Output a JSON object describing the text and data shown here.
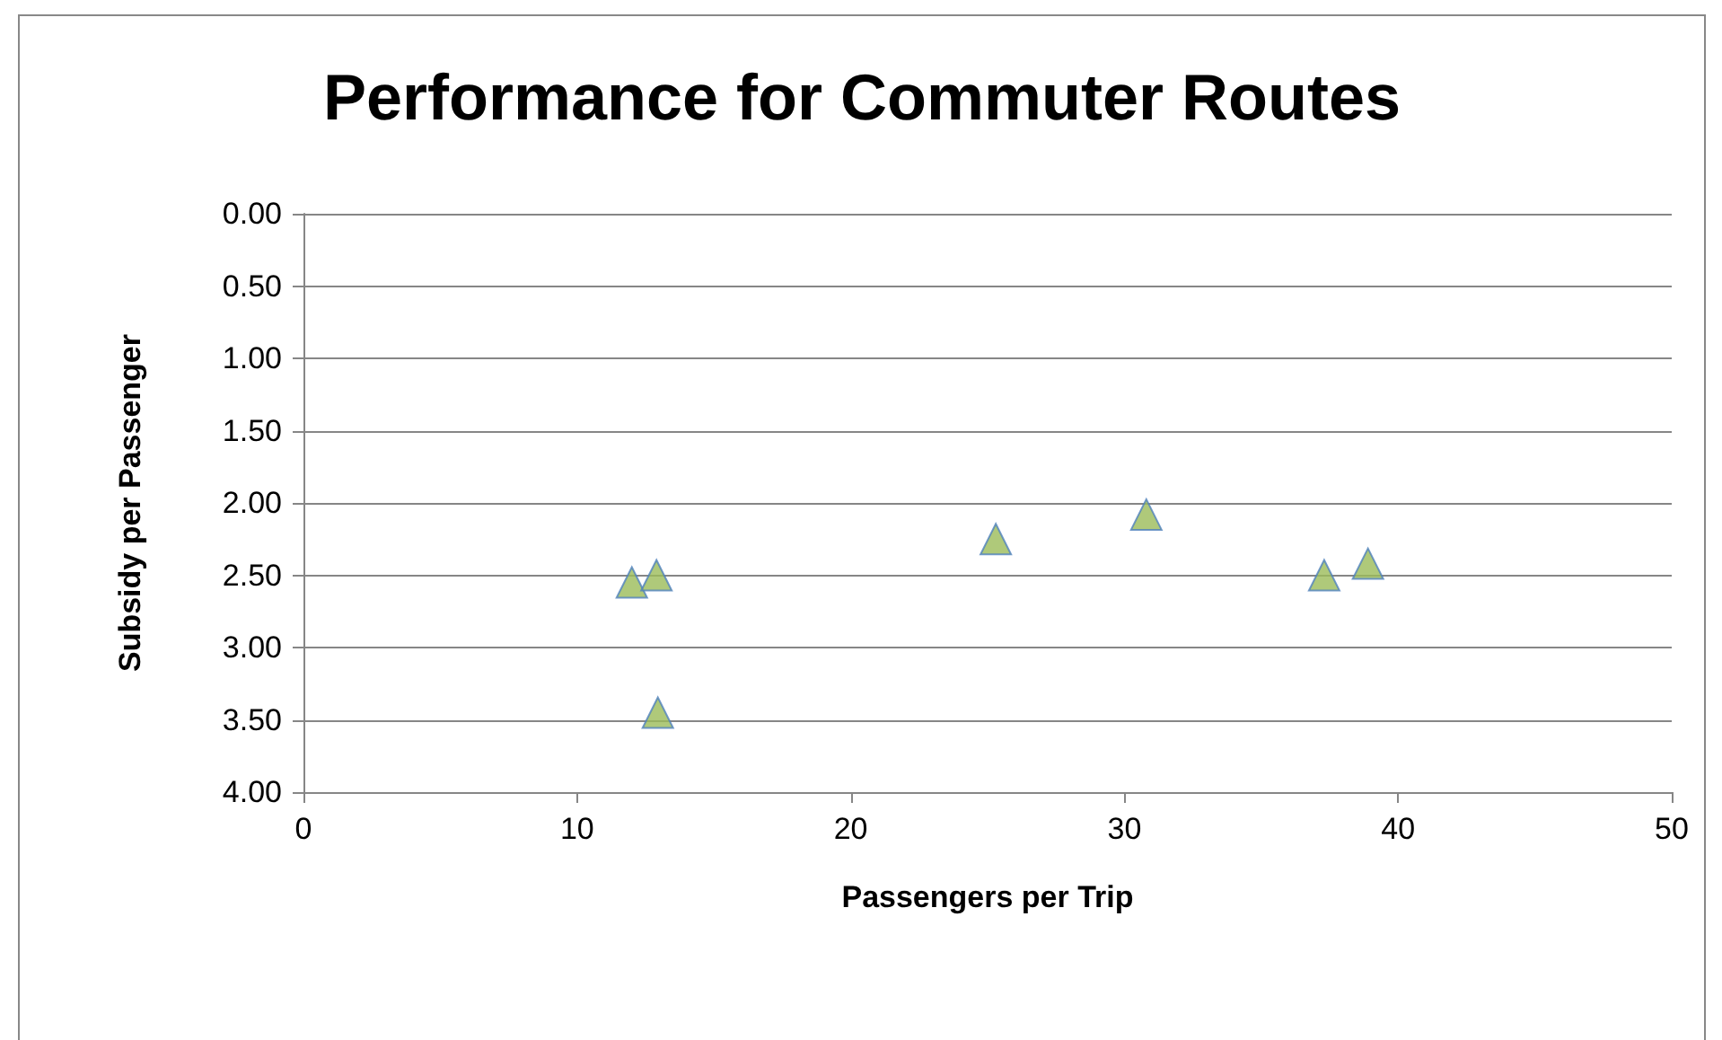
{
  "chart_data": {
    "type": "scatter",
    "title": "Performance for Commuter Routes",
    "xlabel": "Passengers per Trip",
    "ylabel": "Subsidy per Passenger",
    "x": [
      12.0,
      12.9,
      12.95,
      25.3,
      30.8,
      37.3,
      38.9
    ],
    "series": [
      {
        "color": "#9bbb59",
        "values": [
          2.55,
          2.5,
          3.45,
          2.25,
          2.08,
          2.5,
          2.42
        ]
      }
    ],
    "xlim": [
      0,
      50
    ],
    "xticks": [
      0,
      10,
      20,
      30,
      40,
      50
    ],
    "ylim": [
      4,
      0
    ],
    "yticks": [
      {
        "value": 0,
        "label": "0.00"
      },
      {
        "value": 0.5,
        "label": "0.50"
      },
      {
        "value": 1,
        "label": "1.00"
      },
      {
        "value": 1.5,
        "label": "1.50"
      },
      {
        "value": 2,
        "label": "2.00"
      },
      {
        "value": 2.5,
        "label": "2.50"
      },
      {
        "value": 3,
        "label": "3.00"
      },
      {
        "value": 3.5,
        "label": "3.50"
      },
      {
        "value": 4,
        "label": "4.00"
      }
    ],
    "grid": "y",
    "marker": "triangle"
  }
}
